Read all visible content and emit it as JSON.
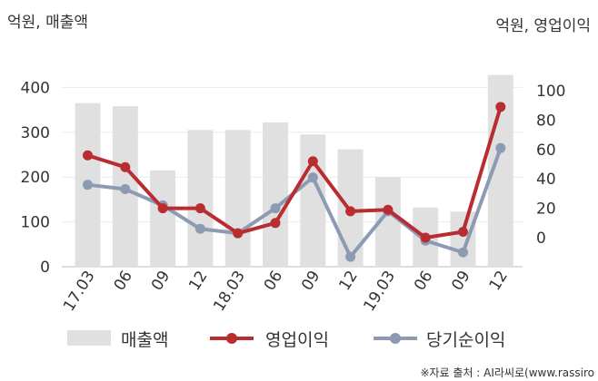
{
  "chart_data": {
    "type": "bar+line",
    "categories": [
      "17.03",
      "06",
      "09",
      "12",
      "18.03",
      "06",
      "09",
      "12",
      "19.03",
      "06",
      "09",
      "12"
    ],
    "left_axis_title": "억원, 매출액",
    "right_axis_title": "억원, 영업이익",
    "y_left": {
      "ticks": [
        0,
        100,
        200,
        300,
        400
      ]
    },
    "y_right": {
      "ticks": [
        0,
        20,
        40,
        60,
        80,
        100
      ]
    },
    "series": [
      {
        "name": "매출액",
        "type": "bar",
        "axis": "left",
        "color": "#e0e0e0",
        "values": [
          365,
          358,
          215,
          305,
          305,
          322,
          295,
          262,
          200,
          132,
          123,
          428
        ]
      },
      {
        "name": "영업이익",
        "type": "line",
        "axis": "right",
        "color": "#b92d31",
        "values": [
          56,
          48,
          20,
          20,
          3,
          10,
          52,
          18,
          19,
          0,
          4,
          89
        ]
      },
      {
        "name": "당기순이익",
        "type": "line",
        "axis": "right",
        "color": "#8d9ab3",
        "values": [
          36,
          33,
          22,
          6,
          3,
          20,
          41,
          -13,
          18,
          -2,
          -10,
          61
        ]
      }
    ],
    "grid": true,
    "legend_position": "bottom"
  },
  "source": "※자료 출처 : AI라씨로(www.rassiro"
}
